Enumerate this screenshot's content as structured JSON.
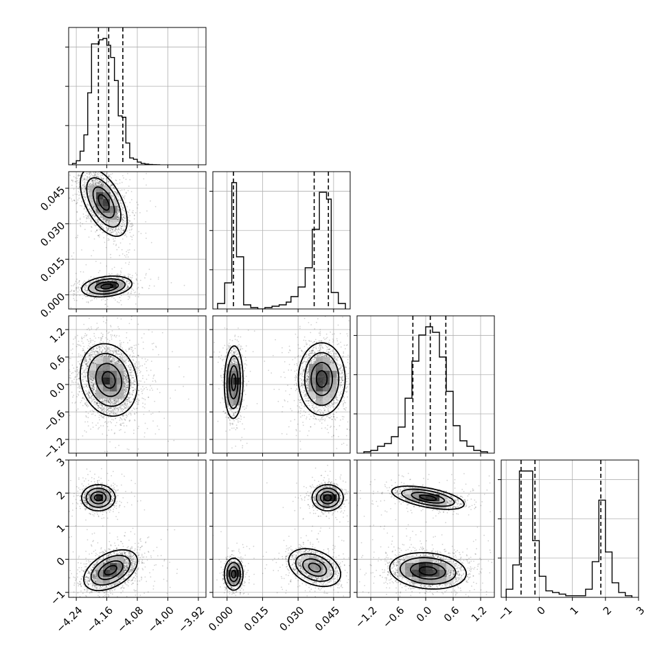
{
  "chart_data": {
    "type": "corner",
    "title": "",
    "grid": true,
    "parameters": [
      {
        "index": 0,
        "range": [
          -4.26,
          -3.9
        ],
        "ticks": [
          -4.24,
          -4.16,
          -4.08,
          -4.0,
          -3.92
        ],
        "tick_labels": [
          "−4.24",
          "−4.16",
          "−4.08",
          "−4.00",
          "−3.92"
        ],
        "quantiles": [
          -4.182,
          -4.155,
          -4.118
        ],
        "histogram": {
          "edges": [
            -4.25,
            -4.24,
            -4.23,
            -4.22,
            -4.21,
            -4.2,
            -4.19,
            -4.18,
            -4.17,
            -4.16,
            -4.15,
            -4.14,
            -4.13,
            -4.12,
            -4.11,
            -4.1,
            -4.09,
            -4.08,
            -4.07,
            -4.06,
            -4.05,
            -4.04,
            -4.03,
            -4.02
          ],
          "counts": [
            0.01,
            0.03,
            0.1,
            0.22,
            0.53,
            0.89,
            0.89,
            0.92,
            0.93,
            0.88,
            0.79,
            0.62,
            0.36,
            0.35,
            0.16,
            0.05,
            0.04,
            0.02,
            0.01,
            0.005,
            0.002,
            0.001,
            0.0
          ]
        }
      },
      {
        "index": 1,
        "range": [
          -0.006,
          0.052
        ],
        "ticks": [
          0.0,
          0.015,
          0.03,
          0.045
        ],
        "tick_labels": [
          "0.000",
          "0.015",
          "0.030",
          "0.045"
        ],
        "quantiles": [
          0.0027,
          0.0368,
          0.0428
        ],
        "histogram": {
          "edges": [
            -0.004,
            -0.001,
            0.002,
            0.004,
            0.007,
            0.01,
            0.013,
            0.016,
            0.019,
            0.022,
            0.025,
            0.027,
            0.03,
            0.033,
            0.036,
            0.039,
            0.042,
            0.044,
            0.047,
            0.05
          ],
          "counts": [
            0.04,
            0.19,
            0.92,
            0.38,
            0.03,
            0.01,
            0.0,
            0.01,
            0.02,
            0.03,
            0.05,
            0.09,
            0.16,
            0.3,
            0.58,
            0.85,
            0.8,
            0.12,
            0.04
          ]
        }
      },
      {
        "index": 2,
        "range": [
          -1.5,
          1.5
        ],
        "ticks": [
          -1.2,
          -0.6,
          0.0,
          0.6,
          1.2
        ],
        "tick_labels": [
          "−1.2",
          "−0.6",
          "0.0",
          "0.6",
          "1.2"
        ],
        "quantiles": [
          -0.28,
          0.1,
          0.44
        ],
        "histogram": {
          "edges": [
            -1.35,
            -1.2,
            -1.05,
            -0.9,
            -0.75,
            -0.6,
            -0.45,
            -0.3,
            -0.15,
            0.0,
            0.15,
            0.3,
            0.45,
            0.6,
            0.75,
            0.9,
            1.05,
            1.2,
            1.35
          ],
          "counts": [
            0.01,
            0.02,
            0.05,
            0.07,
            0.12,
            0.19,
            0.4,
            0.67,
            0.86,
            0.92,
            0.88,
            0.7,
            0.45,
            0.2,
            0.09,
            0.05,
            0.02,
            0.01
          ]
        }
      },
      {
        "index": 3,
        "range": [
          -1.15,
          3.0
        ],
        "ticks": [
          -1,
          0,
          1,
          2,
          3
        ],
        "tick_labels": [
          "−1",
          "0",
          "1",
          "2",
          "3"
        ],
        "quantiles": [
          -0.55,
          -0.13,
          1.86
        ],
        "histogram": {
          "edges": [
            -1.0,
            -0.8,
            -0.6,
            -0.4,
            -0.2,
            0.0,
            0.2,
            0.4,
            0.6,
            0.8,
            1.0,
            1.2,
            1.4,
            1.6,
            1.8,
            2.0,
            2.2,
            2.4,
            2.6,
            2.8
          ],
          "counts": [
            0.05,
            0.2,
            0.78,
            0.78,
            0.35,
            0.13,
            0.04,
            0.03,
            0.02,
            0.01,
            0.01,
            0.01,
            0.05,
            0.22,
            0.6,
            0.28,
            0.09,
            0.03,
            0.01
          ]
        }
      }
    ],
    "pairs": [
      {
        "row": 1,
        "col": 0,
        "modes": [
          {
            "x": -4.168,
            "y": 0.039,
            "sx": 0.028,
            "sy": 0.0065,
            "rho": -0.55,
            "n": 2600
          },
          {
            "x": -4.16,
            "y": 0.0035,
            "sx": 0.03,
            "sy": 0.002,
            "rho": 0.25,
            "n": 1300
          }
        ]
      },
      {
        "row": 2,
        "col": 0,
        "modes": [
          {
            "x": -4.155,
            "y": 0.1,
            "sx": 0.034,
            "sy": 0.36,
            "rho": -0.15,
            "n": 3900
          }
        ]
      },
      {
        "row": 2,
        "col": 1,
        "modes": [
          {
            "x": 0.0028,
            "y": 0.05,
            "sx": 0.0018,
            "sy": 0.36,
            "rho": 0.05,
            "n": 1300
          },
          {
            "x": 0.04,
            "y": 0.12,
            "sx": 0.0045,
            "sy": 0.36,
            "rho": 0.0,
            "n": 2600
          }
        ]
      },
      {
        "row": 3,
        "col": 0,
        "modes": [
          {
            "x": -4.182,
            "y": 1.86,
            "sx": 0.02,
            "sy": 0.18,
            "rho": 0.0,
            "n": 1300
          },
          {
            "x": -4.15,
            "y": -0.33,
            "sx": 0.032,
            "sy": 0.28,
            "rho": 0.45,
            "n": 2600
          }
        ]
      },
      {
        "row": 3,
        "col": 1,
        "modes": [
          {
            "x": 0.0425,
            "y": 1.86,
            "sx": 0.003,
            "sy": 0.18,
            "rho": 0.0,
            "n": 1300
          },
          {
            "x": 0.037,
            "y": -0.25,
            "sx": 0.005,
            "sy": 0.26,
            "rho": -0.35,
            "n": 1600
          },
          {
            "x": 0.0028,
            "y": -0.45,
            "sx": 0.0018,
            "sy": 0.22,
            "rho": 0.0,
            "n": 1000
          }
        ]
      },
      {
        "row": 3,
        "col": 2,
        "modes": [
          {
            "x": 0.05,
            "y": 1.86,
            "sx": 0.36,
            "sy": 0.16,
            "rho": -0.55,
            "n": 1300
          },
          {
            "x": 0.05,
            "y": -0.35,
            "sx": 0.38,
            "sy": 0.25,
            "rho": -0.15,
            "n": 2600
          }
        ]
      }
    ]
  }
}
